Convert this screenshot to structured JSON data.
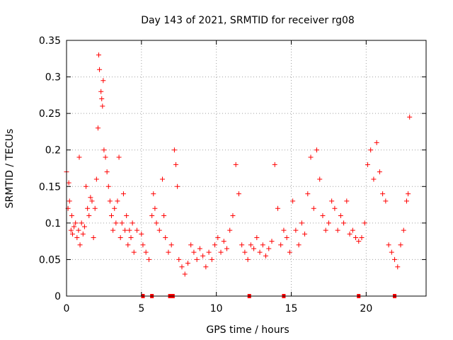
{
  "chart_data": {
    "type": "scatter",
    "title": "Day 143 of 2021, SRMTID for receiver rg08",
    "xlabel": "GPS time / hours",
    "ylabel": "SRMTID / TECUs",
    "xlim": [
      0,
      24
    ],
    "ylim": [
      0,
      0.35
    ],
    "xticks": [
      0,
      5,
      10,
      15,
      20
    ],
    "yticks": [
      0,
      0.05,
      0.1,
      0.15,
      0.2,
      0.25,
      0.3,
      0.35
    ],
    "xtick_labels": [
      "0",
      "5",
      "10",
      "15",
      "20"
    ],
    "ytick_labels": [
      "0",
      "0.05",
      "0.1",
      "0.15",
      "0.2",
      "0.25",
      "0.3",
      "0.35"
    ],
    "grid": true,
    "marker": "plus",
    "color": "#ff0000",
    "series": [
      {
        "name": "SRMTID",
        "points": [
          [
            0.0,
            0.17
          ],
          [
            0.1,
            0.12
          ],
          [
            0.15,
            0.155
          ],
          [
            0.2,
            0.13
          ],
          [
            0.3,
            0.09
          ],
          [
            0.35,
            0.11
          ],
          [
            0.4,
            0.085
          ],
          [
            0.5,
            0.095
          ],
          [
            0.6,
            0.1
          ],
          [
            0.7,
            0.08
          ],
          [
            0.8,
            0.09
          ],
          [
            0.85,
            0.19
          ],
          [
            0.9,
            0.07
          ],
          [
            1.0,
            0.1
          ],
          [
            1.1,
            0.085
          ],
          [
            1.2,
            0.095
          ],
          [
            1.3,
            0.15
          ],
          [
            1.4,
            0.12
          ],
          [
            1.5,
            0.11
          ],
          [
            1.6,
            0.135
          ],
          [
            1.7,
            0.13
          ],
          [
            1.8,
            0.08
          ],
          [
            1.9,
            0.12
          ],
          [
            2.0,
            0.16
          ],
          [
            2.1,
            0.23
          ],
          [
            2.15,
            0.33
          ],
          [
            2.2,
            0.31
          ],
          [
            2.3,
            0.28
          ],
          [
            2.35,
            0.27
          ],
          [
            2.4,
            0.26
          ],
          [
            2.45,
            0.295
          ],
          [
            2.5,
            0.2
          ],
          [
            2.6,
            0.19
          ],
          [
            2.7,
            0.17
          ],
          [
            2.8,
            0.15
          ],
          [
            2.9,
            0.13
          ],
          [
            3.0,
            0.11
          ],
          [
            3.1,
            0.09
          ],
          [
            3.2,
            0.12
          ],
          [
            3.3,
            0.1
          ],
          [
            3.4,
            0.13
          ],
          [
            3.5,
            0.19
          ],
          [
            3.6,
            0.08
          ],
          [
            3.7,
            0.1
          ],
          [
            3.8,
            0.14
          ],
          [
            3.9,
            0.09
          ],
          [
            4.0,
            0.11
          ],
          [
            4.1,
            0.07
          ],
          [
            4.2,
            0.09
          ],
          [
            4.3,
            0.08
          ],
          [
            4.4,
            0.1
          ],
          [
            4.5,
            0.06
          ],
          [
            4.7,
            0.09
          ],
          [
            5.0,
            0.085
          ],
          [
            5.1,
            0.07
          ],
          [
            5.3,
            0.06
          ],
          [
            5.5,
            0.05
          ],
          [
            5.7,
            0.11
          ],
          [
            5.8,
            0.14
          ],
          [
            5.9,
            0.12
          ],
          [
            6.0,
            0.1
          ],
          [
            6.2,
            0.09
          ],
          [
            6.4,
            0.16
          ],
          [
            6.5,
            0.11
          ],
          [
            6.6,
            0.08
          ],
          [
            6.8,
            0.06
          ],
          [
            7.0,
            0.07
          ],
          [
            7.2,
            0.2
          ],
          [
            7.3,
            0.18
          ],
          [
            7.4,
            0.15
          ],
          [
            7.5,
            0.05
          ],
          [
            7.7,
            0.04
          ],
          [
            7.9,
            0.03
          ],
          [
            8.1,
            0.045
          ],
          [
            8.3,
            0.07
          ],
          [
            8.5,
            0.06
          ],
          [
            8.7,
            0.05
          ],
          [
            8.9,
            0.065
          ],
          [
            9.1,
            0.055
          ],
          [
            9.3,
            0.04
          ],
          [
            9.5,
            0.06
          ],
          [
            9.7,
            0.05
          ],
          [
            9.9,
            0.07
          ],
          [
            10.1,
            0.08
          ],
          [
            10.3,
            0.06
          ],
          [
            10.5,
            0.075
          ],
          [
            10.7,
            0.065
          ],
          [
            10.9,
            0.09
          ],
          [
            11.1,
            0.11
          ],
          [
            11.3,
            0.18
          ],
          [
            11.5,
            0.14
          ],
          [
            11.7,
            0.07
          ],
          [
            11.9,
            0.06
          ],
          [
            12.1,
            0.05
          ],
          [
            12.3,
            0.07
          ],
          [
            12.5,
            0.065
          ],
          [
            12.7,
            0.08
          ],
          [
            12.9,
            0.06
          ],
          [
            13.1,
            0.07
          ],
          [
            13.3,
            0.055
          ],
          [
            13.5,
            0.065
          ],
          [
            13.7,
            0.075
          ],
          [
            13.9,
            0.18
          ],
          [
            14.1,
            0.12
          ],
          [
            14.3,
            0.07
          ],
          [
            14.5,
            0.09
          ],
          [
            14.7,
            0.08
          ],
          [
            14.9,
            0.06
          ],
          [
            15.1,
            0.13
          ],
          [
            15.3,
            0.09
          ],
          [
            15.5,
            0.07
          ],
          [
            15.7,
            0.1
          ],
          [
            15.9,
            0.085
          ],
          [
            16.1,
            0.14
          ],
          [
            16.3,
            0.19
          ],
          [
            16.5,
            0.12
          ],
          [
            16.7,
            0.2
          ],
          [
            16.9,
            0.16
          ],
          [
            17.1,
            0.11
          ],
          [
            17.3,
            0.09
          ],
          [
            17.5,
            0.1
          ],
          [
            17.7,
            0.13
          ],
          [
            17.9,
            0.12
          ],
          [
            18.1,
            0.09
          ],
          [
            18.3,
            0.11
          ],
          [
            18.5,
            0.1
          ],
          [
            18.7,
            0.13
          ],
          [
            18.9,
            0.085
          ],
          [
            19.1,
            0.09
          ],
          [
            19.3,
            0.08
          ],
          [
            19.5,
            0.075
          ],
          [
            19.7,
            0.08
          ],
          [
            19.9,
            0.1
          ],
          [
            20.1,
            0.18
          ],
          [
            20.3,
            0.2
          ],
          [
            20.5,
            0.16
          ],
          [
            20.7,
            0.21
          ],
          [
            20.9,
            0.17
          ],
          [
            21.1,
            0.14
          ],
          [
            21.3,
            0.13
          ],
          [
            21.5,
            0.07
          ],
          [
            21.7,
            0.06
          ],
          [
            21.9,
            0.05
          ],
          [
            22.1,
            0.04
          ],
          [
            22.3,
            0.07
          ],
          [
            22.5,
            0.09
          ],
          [
            22.7,
            0.13
          ],
          [
            22.8,
            0.14
          ],
          [
            22.9,
            0.245
          ]
        ]
      }
    ],
    "axis_markers_x": [
      5.1,
      5.7,
      6.9,
      7.1,
      12.2,
      14.5,
      19.5,
      21.9
    ],
    "axis_markers_y": 0
  }
}
